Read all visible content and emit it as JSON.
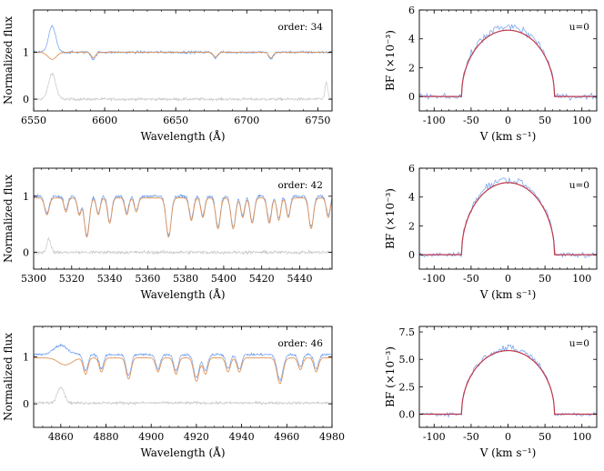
{
  "chart_data": [
    {
      "type": "line",
      "panel": "spectrum",
      "row": 0,
      "annotation": "order: 34",
      "xlabel": "Wavelength (Å)",
      "ylabel": "Normalized flux",
      "xlim": [
        6550,
        6760
      ],
      "ylim": [
        -0.25,
        1.9
      ],
      "xticks": [
        6550,
        6600,
        6650,
        6700,
        6750
      ],
      "yticks": [
        0,
        1
      ],
      "series": [
        {
          "name": "observed",
          "color": "#6f9ef0",
          "baseline": 1.0,
          "features": [
            {
              "x": 6563,
              "depth": -0.55,
              "width": 2.5
            },
            {
              "x": 6592,
              "depth": 0.15,
              "width": 1.5
            },
            {
              "x": 6678,
              "depth": 0.12,
              "width": 1.5
            },
            {
              "x": 6717,
              "depth": 0.15,
              "width": 1.5
            }
          ]
        },
        {
          "name": "model",
          "color": "#e0955a",
          "baseline": 1.0,
          "features": [
            {
              "x": 6563,
              "depth": 0.15,
              "width": 3.0
            },
            {
              "x": 6592,
              "depth": 0.12,
              "width": 1.5
            },
            {
              "x": 6678,
              "depth": 0.1,
              "width": 1.5
            },
            {
              "x": 6717,
              "depth": 0.12,
              "width": 1.5
            }
          ]
        },
        {
          "name": "residual",
          "color": "#c8c8c8",
          "baseline": 0.0,
          "features": [
            {
              "x": 6563,
              "depth": -0.55,
              "width": 2.5
            },
            {
              "x": 6756,
              "depth": -0.35,
              "width": 1.0
            }
          ]
        }
      ]
    },
    {
      "type": "line",
      "panel": "broadening_function",
      "row": 0,
      "annotation": "u=0",
      "xlabel": "V (km s⁻¹)",
      "ylabel": "BF (×10⁻³)",
      "xlim": [
        -120,
        120
      ],
      "ylim": [
        -1.0,
        6.0
      ],
      "xticks": [
        -100,
        -50,
        0,
        50,
        100
      ],
      "yticks": [
        0,
        2,
        4,
        6
      ],
      "series": [
        {
          "name": "fit",
          "color": "#c0394b",
          "amplitude": 4.6,
          "vsini": 63
        },
        {
          "name": "observed",
          "color": "#7aa6ef",
          "amplitude": 4.8,
          "vsini": 63
        }
      ]
    },
    {
      "type": "line",
      "panel": "spectrum",
      "row": 1,
      "annotation": "order: 42",
      "xlabel": "Wavelength (Å)",
      "ylabel": "Normalized flux",
      "xlim": [
        5300,
        5457
      ],
      "ylim": [
        -0.3,
        1.5
      ],
      "xticks": [
        5300,
        5320,
        5340,
        5360,
        5380,
        5400,
        5420,
        5440
      ],
      "yticks": [
        0,
        1
      ],
      "series": [
        {
          "name": "observed",
          "color": "#6f9ef0",
          "baseline": 1.0,
          "features": [
            {
              "x": 5307,
              "depth": 0.3,
              "width": 1.2
            },
            {
              "x": 5317,
              "depth": 0.25,
              "width": 1.0
            },
            {
              "x": 5324,
              "depth": 0.3,
              "width": 1.0
            },
            {
              "x": 5328,
              "depth": 0.7,
              "width": 1.3
            },
            {
              "x": 5334,
              "depth": 0.3,
              "width": 1.0
            },
            {
              "x": 5340,
              "depth": 0.45,
              "width": 1.1
            },
            {
              "x": 5349,
              "depth": 0.3,
              "width": 1.0
            },
            {
              "x": 5354,
              "depth": 0.25,
              "width": 1.0
            },
            {
              "x": 5371,
              "depth": 0.7,
              "width": 1.3
            },
            {
              "x": 5383,
              "depth": 0.4,
              "width": 1.1
            },
            {
              "x": 5389,
              "depth": 0.35,
              "width": 1.0
            },
            {
              "x": 5397,
              "depth": 0.55,
              "width": 1.2
            },
            {
              "x": 5405,
              "depth": 0.55,
              "width": 1.2
            },
            {
              "x": 5410,
              "depth": 0.35,
              "width": 1.0
            },
            {
              "x": 5415,
              "depth": 0.45,
              "width": 1.1
            },
            {
              "x": 5424,
              "depth": 0.45,
              "width": 1.1
            },
            {
              "x": 5429,
              "depth": 0.4,
              "width": 1.0
            },
            {
              "x": 5434,
              "depth": 0.35,
              "width": 1.0
            },
            {
              "x": 5446,
              "depth": 0.55,
              "width": 1.2
            },
            {
              "x": 5455,
              "depth": 0.35,
              "width": 1.0
            }
          ]
        },
        {
          "name": "model",
          "color": "#e0955a",
          "baseline": 0.97,
          "features": [
            {
              "x": 5307,
              "depth": 0.3,
              "width": 1.2
            },
            {
              "x": 5317,
              "depth": 0.25,
              "width": 1.0
            },
            {
              "x": 5324,
              "depth": 0.3,
              "width": 1.0
            },
            {
              "x": 5328,
              "depth": 0.7,
              "width": 1.3
            },
            {
              "x": 5334,
              "depth": 0.3,
              "width": 1.0
            },
            {
              "x": 5340,
              "depth": 0.45,
              "width": 1.1
            },
            {
              "x": 5349,
              "depth": 0.3,
              "width": 1.0
            },
            {
              "x": 5354,
              "depth": 0.25,
              "width": 1.0
            },
            {
              "x": 5371,
              "depth": 0.7,
              "width": 1.3
            },
            {
              "x": 5383,
              "depth": 0.4,
              "width": 1.1
            },
            {
              "x": 5389,
              "depth": 0.35,
              "width": 1.0
            },
            {
              "x": 5397,
              "depth": 0.55,
              "width": 1.2
            },
            {
              "x": 5405,
              "depth": 0.55,
              "width": 1.2
            },
            {
              "x": 5410,
              "depth": 0.35,
              "width": 1.0
            },
            {
              "x": 5415,
              "depth": 0.45,
              "width": 1.1
            },
            {
              "x": 5424,
              "depth": 0.45,
              "width": 1.1
            },
            {
              "x": 5429,
              "depth": 0.4,
              "width": 1.0
            },
            {
              "x": 5434,
              "depth": 0.35,
              "width": 1.0
            },
            {
              "x": 5446,
              "depth": 0.55,
              "width": 1.2
            },
            {
              "x": 5455,
              "depth": 0.35,
              "width": 1.0
            }
          ]
        },
        {
          "name": "residual",
          "color": "#c8c8c8",
          "baseline": 0.0,
          "features": [
            {
              "x": 5308,
              "depth": -0.25,
              "width": 1.0
            }
          ]
        }
      ]
    },
    {
      "type": "line",
      "panel": "broadening_function",
      "row": 1,
      "annotation": "u=0",
      "xlabel": "V (km s⁻¹)",
      "ylabel": "BF (×10⁻³)",
      "xlim": [
        -120,
        120
      ],
      "ylim": [
        -1.0,
        6.0
      ],
      "xticks": [
        -100,
        -50,
        0,
        50,
        100
      ],
      "yticks": [
        0,
        2,
        4,
        6
      ],
      "series": [
        {
          "name": "fit",
          "color": "#c0394b",
          "amplitude": 5.0,
          "vsini": 63
        },
        {
          "name": "observed",
          "color": "#7aa6ef",
          "amplitude": 5.2,
          "vsini": 63
        }
      ]
    },
    {
      "type": "line",
      "panel": "spectrum",
      "row": 2,
      "annotation": "order: 46",
      "xlabel": "Wavelength (Å)",
      "ylabel": "Normalized flux",
      "xlim": [
        4848,
        4980
      ],
      "ylim": [
        -0.5,
        1.65
      ],
      "xticks": [
        4860,
        4880,
        4900,
        4920,
        4940,
        4960,
        4980
      ],
      "yticks": [
        0,
        1
      ],
      "series": [
        {
          "name": "observed",
          "color": "#6f9ef0",
          "baseline": 1.05,
          "features": [
            {
              "x": 4860,
              "depth": -0.2,
              "width": 3.0
            },
            {
              "x": 4871,
              "depth": 0.35,
              "width": 1.0
            },
            {
              "x": 4878,
              "depth": 0.3,
              "width": 1.0
            },
            {
              "x": 4890,
              "depth": 0.45,
              "width": 1.1
            },
            {
              "x": 4903,
              "depth": 0.3,
              "width": 1.0
            },
            {
              "x": 4911,
              "depth": 0.35,
              "width": 1.0
            },
            {
              "x": 4920,
              "depth": 0.5,
              "width": 1.2
            },
            {
              "x": 4924,
              "depth": 0.35,
              "width": 1.0
            },
            {
              "x": 4934,
              "depth": 0.3,
              "width": 1.0
            },
            {
              "x": 4939,
              "depth": 0.3,
              "width": 1.0
            },
            {
              "x": 4957,
              "depth": 0.55,
              "width": 1.3
            },
            {
              "x": 4966,
              "depth": 0.25,
              "width": 1.0
            },
            {
              "x": 4973,
              "depth": 0.3,
              "width": 1.0
            }
          ]
        },
        {
          "name": "model",
          "color": "#e0955a",
          "baseline": 0.98,
          "features": [
            {
              "x": 4862,
              "depth": 0.15,
              "width": 3.0
            },
            {
              "x": 4871,
              "depth": 0.35,
              "width": 1.0
            },
            {
              "x": 4878,
              "depth": 0.3,
              "width": 1.0
            },
            {
              "x": 4890,
              "depth": 0.45,
              "width": 1.1
            },
            {
              "x": 4903,
              "depth": 0.3,
              "width": 1.0
            },
            {
              "x": 4911,
              "depth": 0.35,
              "width": 1.0
            },
            {
              "x": 4920,
              "depth": 0.5,
              "width": 1.2
            },
            {
              "x": 4924,
              "depth": 0.35,
              "width": 1.0
            },
            {
              "x": 4934,
              "depth": 0.3,
              "width": 1.0
            },
            {
              "x": 4939,
              "depth": 0.3,
              "width": 1.0
            },
            {
              "x": 4957,
              "depth": 0.55,
              "width": 1.3
            },
            {
              "x": 4966,
              "depth": 0.25,
              "width": 1.0
            },
            {
              "x": 4973,
              "depth": 0.3,
              "width": 1.0
            }
          ]
        },
        {
          "name": "residual",
          "color": "#c8c8c8",
          "baseline": 0.02,
          "features": [
            {
              "x": 4860,
              "depth": -0.35,
              "width": 1.5
            }
          ]
        }
      ]
    },
    {
      "type": "line",
      "panel": "broadening_function",
      "row": 2,
      "annotation": "u=0",
      "xlabel": "V (km s⁻¹)",
      "ylabel": "BF (×10⁻³)",
      "xlim": [
        -120,
        120
      ],
      "ylim": [
        -1.2,
        8.0
      ],
      "xticks": [
        -100,
        -50,
        0,
        50,
        100
      ],
      "yticks": [
        0.0,
        2.5,
        5.0,
        7.5
      ],
      "series": [
        {
          "name": "fit",
          "color": "#c0394b",
          "amplitude": 5.8,
          "vsini": 63
        },
        {
          "name": "observed",
          "color": "#7aa6ef",
          "amplitude": 6.0,
          "vsini": 63
        }
      ]
    }
  ]
}
